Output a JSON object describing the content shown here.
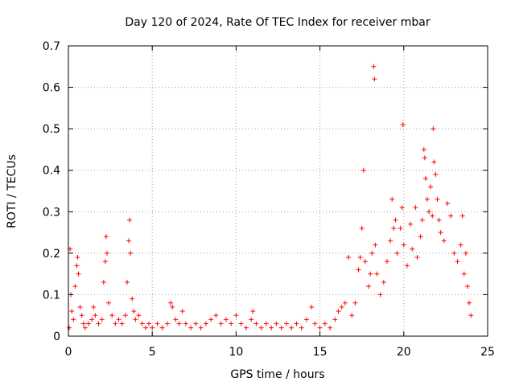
{
  "chart_data": {
    "type": "scatter",
    "title": "Day 120 of 2024, Rate Of TEC Index for receiver mbar",
    "xlabel": "GPS time / hours",
    "ylabel": "ROTI / TECUs",
    "xlim": [
      0,
      25
    ],
    "ylim": [
      0,
      0.7
    ],
    "xticks": [
      "0",
      "5",
      "10",
      "15",
      "20",
      "25"
    ],
    "yticks": [
      "0",
      "0.1",
      "0.2",
      "0.3",
      "0.4",
      "0.5",
      "0.6",
      "0.7"
    ],
    "grid": true,
    "marker": "+",
    "color": "#ff0000",
    "series": [
      {
        "points": [
          [
            0.05,
            0.02
          ],
          [
            0.1,
            0.21
          ],
          [
            0.15,
            0.1
          ],
          [
            0.2,
            0.06
          ],
          [
            0.3,
            0.04
          ],
          [
            0.4,
            0.12
          ],
          [
            0.5,
            0.17
          ],
          [
            0.55,
            0.19
          ],
          [
            0.6,
            0.15
          ],
          [
            0.7,
            0.07
          ],
          [
            0.8,
            0.05
          ],
          [
            0.9,
            0.03
          ],
          [
            1.0,
            0.02
          ],
          [
            1.2,
            0.03
          ],
          [
            1.4,
            0.04
          ],
          [
            1.5,
            0.07
          ],
          [
            1.6,
            0.05
          ],
          [
            1.8,
            0.03
          ],
          [
            2.0,
            0.04
          ],
          [
            2.1,
            0.13
          ],
          [
            2.2,
            0.18
          ],
          [
            2.25,
            0.24
          ],
          [
            2.3,
            0.2
          ],
          [
            2.4,
            0.08
          ],
          [
            2.6,
            0.05
          ],
          [
            2.8,
            0.03
          ],
          [
            3.0,
            0.04
          ],
          [
            3.2,
            0.03
          ],
          [
            3.4,
            0.05
          ],
          [
            3.5,
            0.13
          ],
          [
            3.6,
            0.23
          ],
          [
            3.65,
            0.28
          ],
          [
            3.7,
            0.2
          ],
          [
            3.8,
            0.09
          ],
          [
            3.9,
            0.06
          ],
          [
            4.0,
            0.04
          ],
          [
            4.2,
            0.05
          ],
          [
            4.4,
            0.03
          ],
          [
            4.6,
            0.02
          ],
          [
            4.8,
            0.03
          ],
          [
            5.0,
            0.02
          ],
          [
            5.3,
            0.03
          ],
          [
            5.6,
            0.02
          ],
          [
            5.9,
            0.03
          ],
          [
            6.1,
            0.08
          ],
          [
            6.2,
            0.07
          ],
          [
            6.4,
            0.04
          ],
          [
            6.6,
            0.03
          ],
          [
            6.8,
            0.06
          ],
          [
            7.0,
            0.03
          ],
          [
            7.3,
            0.02
          ],
          [
            7.6,
            0.03
          ],
          [
            7.9,
            0.02
          ],
          [
            8.2,
            0.03
          ],
          [
            8.5,
            0.04
          ],
          [
            8.8,
            0.05
          ],
          [
            9.1,
            0.03
          ],
          [
            9.4,
            0.04
          ],
          [
            9.7,
            0.03
          ],
          [
            10.0,
            0.05
          ],
          [
            10.3,
            0.03
          ],
          [
            10.6,
            0.02
          ],
          [
            10.9,
            0.04
          ],
          [
            11.0,
            0.06
          ],
          [
            11.2,
            0.03
          ],
          [
            11.5,
            0.02
          ],
          [
            11.8,
            0.03
          ],
          [
            12.1,
            0.02
          ],
          [
            12.4,
            0.03
          ],
          [
            12.7,
            0.02
          ],
          [
            13.0,
            0.03
          ],
          [
            13.3,
            0.02
          ],
          [
            13.6,
            0.03
          ],
          [
            13.9,
            0.02
          ],
          [
            14.2,
            0.04
          ],
          [
            14.5,
            0.07
          ],
          [
            14.7,
            0.03
          ],
          [
            15.0,
            0.02
          ],
          [
            15.3,
            0.03
          ],
          [
            15.6,
            0.02
          ],
          [
            15.9,
            0.04
          ],
          [
            16.1,
            0.06
          ],
          [
            16.3,
            0.07
          ],
          [
            16.5,
            0.08
          ],
          [
            16.7,
            0.19
          ],
          [
            16.9,
            0.05
          ],
          [
            17.1,
            0.08
          ],
          [
            17.3,
            0.16
          ],
          [
            17.4,
            0.19
          ],
          [
            17.5,
            0.26
          ],
          [
            17.6,
            0.4
          ],
          [
            17.7,
            0.18
          ],
          [
            17.9,
            0.12
          ],
          [
            18.0,
            0.15
          ],
          [
            18.1,
            0.2
          ],
          [
            18.2,
            0.65
          ],
          [
            18.25,
            0.62
          ],
          [
            18.3,
            0.22
          ],
          [
            18.4,
            0.15
          ],
          [
            18.6,
            0.1
          ],
          [
            18.8,
            0.13
          ],
          [
            19.0,
            0.18
          ],
          [
            19.2,
            0.23
          ],
          [
            19.3,
            0.33
          ],
          [
            19.4,
            0.26
          ],
          [
            19.5,
            0.28
          ],
          [
            19.6,
            0.2
          ],
          [
            19.8,
            0.26
          ],
          [
            19.9,
            0.31
          ],
          [
            19.95,
            0.51
          ],
          [
            20.0,
            0.22
          ],
          [
            20.2,
            0.17
          ],
          [
            20.4,
            0.27
          ],
          [
            20.5,
            0.21
          ],
          [
            20.7,
            0.31
          ],
          [
            20.8,
            0.19
          ],
          [
            21.0,
            0.24
          ],
          [
            21.1,
            0.28
          ],
          [
            21.2,
            0.45
          ],
          [
            21.25,
            0.43
          ],
          [
            21.3,
            0.38
          ],
          [
            21.4,
            0.33
          ],
          [
            21.5,
            0.3
          ],
          [
            21.6,
            0.36
          ],
          [
            21.7,
            0.29
          ],
          [
            21.75,
            0.5
          ],
          [
            21.8,
            0.42
          ],
          [
            21.9,
            0.39
          ],
          [
            22.0,
            0.33
          ],
          [
            22.1,
            0.28
          ],
          [
            22.2,
            0.25
          ],
          [
            22.4,
            0.23
          ],
          [
            22.6,
            0.32
          ],
          [
            22.8,
            0.29
          ],
          [
            23.0,
            0.2
          ],
          [
            23.2,
            0.18
          ],
          [
            23.4,
            0.22
          ],
          [
            23.5,
            0.29
          ],
          [
            23.6,
            0.15
          ],
          [
            23.7,
            0.2
          ],
          [
            23.8,
            0.12
          ],
          [
            23.9,
            0.08
          ],
          [
            24.0,
            0.05
          ]
        ]
      }
    ]
  }
}
